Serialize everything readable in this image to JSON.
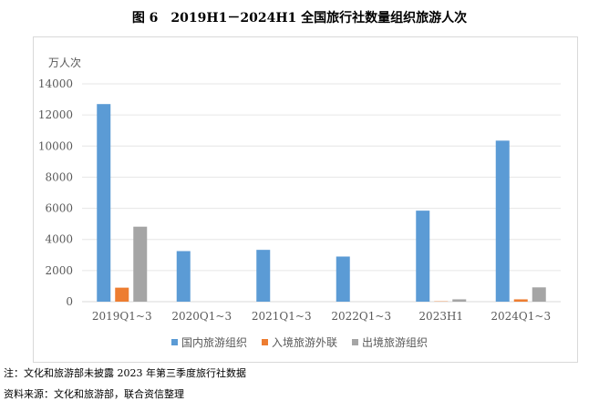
{
  "title": "图 6　2019H1－2024H1 全国旅行社数量组织旅游人次",
  "note": "注：文化和旅游部未披露 2023 年第三季度旅行社数据",
  "source": "资料来源：文化和旅游部，联合资信整理",
  "chart_data": {
    "type": "bar",
    "ylabel": "万人次",
    "ylim": [
      0,
      14000
    ],
    "yticks": [
      0,
      2000,
      4000,
      6000,
      8000,
      10000,
      12000,
      14000
    ],
    "grid": true,
    "legend_position": "bottom",
    "categories": [
      "2019Q1~3",
      "2020Q1~3",
      "2021Q1~3",
      "2022Q1~3",
      "2023H1",
      "2024Q1~3"
    ],
    "series": [
      {
        "name": "国内旅游组织",
        "color": "#5b9bd5",
        "values": [
          12700,
          3250,
          3330,
          2900,
          5850,
          10350
        ]
      },
      {
        "name": "入境旅游外联",
        "color": "#ed7d31",
        "values": [
          900,
          0,
          0,
          0,
          20,
          150
        ]
      },
      {
        "name": "出境旅游组织",
        "color": "#a5a5a5",
        "values": [
          4820,
          0,
          0,
          0,
          150,
          920
        ]
      }
    ]
  }
}
